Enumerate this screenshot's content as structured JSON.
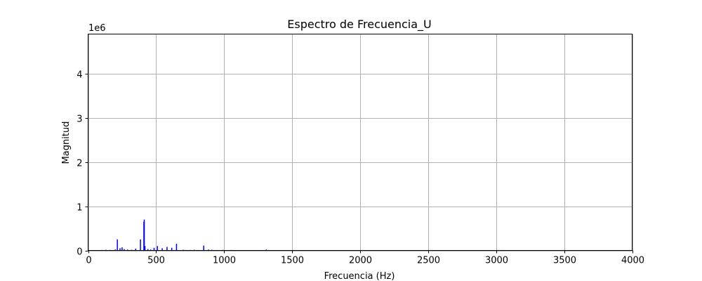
{
  "chart_data": {
    "type": "bar",
    "title": "Espectro de Frecuencia_U",
    "xlabel": "Frecuencia (Hz)",
    "ylabel": "Magnitud",
    "scale_label": "1e6",
    "xlim": [
      0,
      4000
    ],
    "ylim": [
      0,
      4.9
    ],
    "grid": true,
    "bar_color": "#0000ff",
    "x_ticks": [
      0,
      500,
      1000,
      1500,
      2000,
      2500,
      3000,
      3500,
      4000
    ],
    "y_ticks": [
      0,
      1,
      2,
      3,
      4
    ],
    "x": [
      100,
      130,
      160,
      200,
      215,
      235,
      250,
      265,
      290,
      320,
      350,
      385,
      410,
      413,
      418,
      440,
      460,
      485,
      510,
      545,
      580,
      615,
      650,
      700,
      725,
      750,
      780,
      810,
      850,
      885,
      910,
      950,
      990,
      1050,
      1100,
      1270,
      1310,
      3045
    ],
    "values": [
      0.01,
      0.015,
      0.012,
      0.02,
      0.25,
      0.05,
      0.07,
      0.03,
      0.02,
      0.015,
      0.04,
      0.25,
      0.65,
      0.7,
      0.1,
      0.03,
      0.02,
      0.06,
      0.1,
      0.05,
      0.08,
      0.06,
      0.15,
      0.015,
      0.01,
      0.012,
      0.015,
      0.01,
      0.11,
      0.02,
      0.015,
      0.01,
      0.012,
      0.01,
      0.008,
      0.008,
      0.02,
      0.01
    ]
  }
}
